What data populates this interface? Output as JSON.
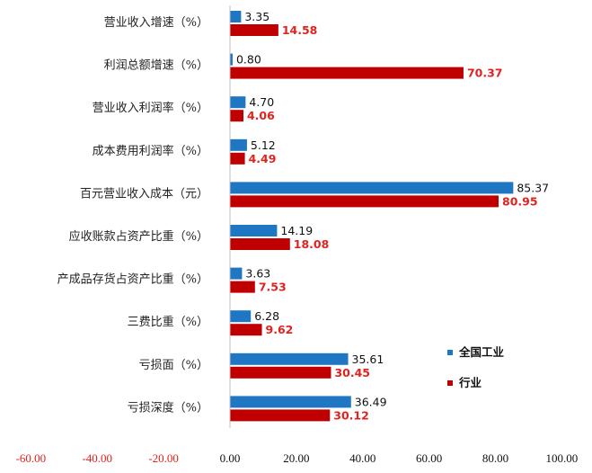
{
  "chart_data": {
    "type": "bar",
    "orientation": "horizontal",
    "categories": [
      "营业收入增速（%）",
      "利润总额增速（%）",
      "营业收入利润率（%）",
      "成本费用利润率（%）",
      "百元营业收入成本（元）",
      "应收账款占资产比重（%）",
      "产成品存货占资产比重（%）",
      "三费比重（%）",
      "亏损面（%）",
      "亏损深度（%）"
    ],
    "series": [
      {
        "name": "全国工业",
        "color": "#1f77c4",
        "values": [
          3.35,
          0.8,
          4.7,
          5.12,
          85.37,
          14.19,
          3.63,
          6.28,
          35.61,
          36.49
        ],
        "labels": [
          "3.35",
          "0.80",
          "4.70",
          "5.12",
          "85.37",
          "14.19",
          "3.63",
          "6.28",
          "35.61",
          "36.49"
        ]
      },
      {
        "name": "行业",
        "color": "#c00000",
        "values": [
          14.58,
          70.37,
          4.06,
          4.49,
          80.95,
          18.08,
          7.53,
          9.62,
          30.45,
          30.12
        ],
        "labels": [
          "14.58",
          "70.37",
          "4.06",
          "4.49",
          "80.95",
          "18.08",
          "7.53",
          "9.62",
          "30.45",
          "30.12"
        ]
      }
    ],
    "xlim": [
      -60,
      100
    ],
    "xticks": [
      -60,
      -40,
      -20,
      0,
      20,
      40,
      60,
      80,
      100
    ],
    "xtick_labels": [
      "-60.00",
      "-40.00",
      "-20.00",
      "0.00",
      "20.00",
      "40.00",
      "60.00",
      "80.00",
      "100.00"
    ],
    "negative_tick_color": "#e0231f",
    "positive_tick_color": "#111111",
    "grid": false,
    "legend_position": "lower-right",
    "title": "",
    "xlabel": "",
    "ylabel": ""
  }
}
